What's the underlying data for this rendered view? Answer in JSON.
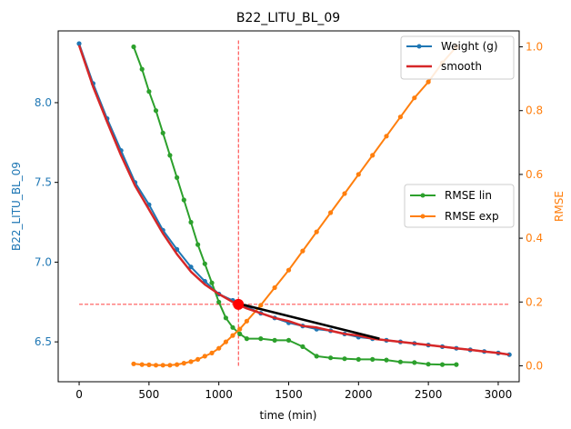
{
  "chart_data": {
    "type": "line",
    "title": "B22_LITU_BL_09",
    "xlabel": "time (min)",
    "ylabel_left": "B22_LITU_BL_09",
    "ylabel_right": "RMSE",
    "xlim": [
      -150,
      3150
    ],
    "ylim_left": [
      6.25,
      8.45
    ],
    "ylim_right": [
      -0.05,
      1.05
    ],
    "x_ticks": [
      0,
      500,
      1000,
      1500,
      2000,
      2500,
      3000
    ],
    "y_left_ticks": [
      6.5,
      7.0,
      7.5,
      8.0
    ],
    "y_right_ticks": [
      0.0,
      0.2,
      0.4,
      0.6,
      0.8,
      1.0
    ],
    "colors": {
      "weight": "#1f77b4",
      "smooth": "#d62728",
      "rmse_lin": "#2ca02c",
      "rmse_exp": "#ff7f0e",
      "fit": "#000000",
      "marker": "#ff0000",
      "guide": "#ff0000"
    },
    "legend_top": {
      "placement": "top-right",
      "items": [
        "Weight (g)",
        "smooth"
      ]
    },
    "legend_mid": {
      "placement": "center-right",
      "items": [
        "RMSE lin",
        "RMSE exp"
      ]
    },
    "series": [
      {
        "name": "Weight (g)",
        "axis": "left",
        "x": [
          0,
          100,
          200,
          300,
          400,
          500,
          600,
          700,
          800,
          900,
          1000,
          1100,
          1140,
          1200,
          1300,
          1400,
          1500,
          1600,
          1700,
          1800,
          1900,
          2000,
          2100,
          2200,
          2300,
          2400,
          2500,
          2600,
          2700,
          2800,
          2900,
          3000,
          3080
        ],
        "y": [
          8.37,
          8.12,
          7.9,
          7.7,
          7.5,
          7.36,
          7.2,
          7.08,
          6.97,
          6.88,
          6.8,
          6.76,
          6.74,
          6.72,
          6.68,
          6.65,
          6.62,
          6.6,
          6.58,
          6.57,
          6.55,
          6.53,
          6.52,
          6.51,
          6.5,
          6.49,
          6.48,
          6.47,
          6.46,
          6.45,
          6.44,
          6.43,
          6.42
        ]
      },
      {
        "name": "smooth",
        "axis": "left",
        "x": [
          0,
          100,
          200,
          300,
          400,
          500,
          600,
          700,
          800,
          900,
          1000,
          1100,
          1200,
          1300,
          1400,
          1500,
          1600,
          1700,
          1800,
          1900,
          2000,
          2100,
          2200,
          2300,
          2400,
          2500,
          2600,
          2700,
          2800,
          2900,
          3000,
          3080
        ],
        "y": [
          8.36,
          8.1,
          7.88,
          7.67,
          7.48,
          7.33,
          7.18,
          7.05,
          6.94,
          6.86,
          6.8,
          6.75,
          6.71,
          6.68,
          6.65,
          6.63,
          6.6,
          6.59,
          6.57,
          6.55,
          6.54,
          6.52,
          6.51,
          6.5,
          6.49,
          6.48,
          6.47,
          6.46,
          6.45,
          6.44,
          6.43,
          6.42
        ]
      },
      {
        "name": "RMSE lin",
        "axis": "right",
        "x": [
          390,
          450,
          500,
          550,
          600,
          650,
          700,
          750,
          800,
          850,
          900,
          950,
          1000,
          1050,
          1100,
          1150,
          1200,
          1300,
          1400,
          1500,
          1600,
          1700,
          1800,
          1900,
          2000,
          2100,
          2200,
          2300,
          2400,
          2500,
          2600,
          2700
        ],
        "y": [
          1.0,
          0.93,
          0.86,
          0.8,
          0.73,
          0.66,
          0.59,
          0.52,
          0.45,
          0.38,
          0.32,
          0.26,
          0.2,
          0.15,
          0.12,
          0.1,
          0.085,
          0.085,
          0.08,
          0.08,
          0.06,
          0.03,
          0.025,
          0.022,
          0.02,
          0.02,
          0.018,
          0.012,
          0.01,
          0.005,
          0.004,
          0.004
        ]
      },
      {
        "name": "RMSE exp",
        "axis": "right",
        "x": [
          390,
          450,
          500,
          550,
          600,
          650,
          700,
          750,
          800,
          850,
          900,
          950,
          1000,
          1050,
          1100,
          1150,
          1200,
          1300,
          1400,
          1500,
          1600,
          1700,
          1800,
          1900,
          2000,
          2100,
          2200,
          2300,
          2400,
          2500,
          2600,
          2700
        ],
        "y": [
          0.006,
          0.004,
          0.003,
          0.002,
          0.002,
          0.002,
          0.004,
          0.008,
          0.013,
          0.02,
          0.03,
          0.04,
          0.055,
          0.075,
          0.095,
          0.115,
          0.14,
          0.19,
          0.245,
          0.3,
          0.36,
          0.42,
          0.48,
          0.54,
          0.6,
          0.66,
          0.72,
          0.78,
          0.84,
          0.89,
          0.95,
          1.0
        ]
      },
      {
        "name": "linear fit",
        "axis": "left",
        "x": [
          1140,
          2150
        ],
        "y": [
          6.74,
          6.52
        ]
      }
    ],
    "marker": {
      "x": 1140,
      "y": 6.735
    },
    "guides": {
      "x": 1140,
      "y": 6.735,
      "vline_y": [
        6.35,
        8.39
      ]
    }
  }
}
